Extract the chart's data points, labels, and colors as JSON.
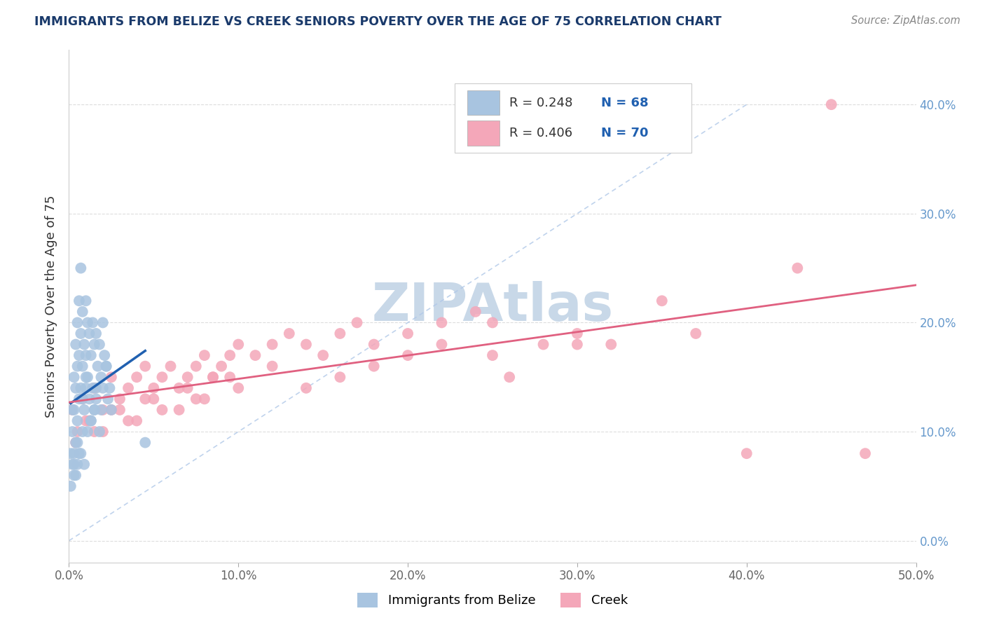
{
  "title": "IMMIGRANTS FROM BELIZE VS CREEK SENIORS POVERTY OVER THE AGE OF 75 CORRELATION CHART",
  "source_text": "Source: ZipAtlas.com",
  "ylabel": "Seniors Poverty Over the Age of 75",
  "xlim": [
    0.0,
    50.0
  ],
  "ylim": [
    -2.0,
    45.0
  ],
  "ytick_labels": [
    "0.0%",
    "10.0%",
    "20.0%",
    "30.0%",
    "40.0%"
  ],
  "ytick_values": [
    0,
    10,
    20,
    30,
    40
  ],
  "xtick_labels": [
    "0.0%",
    "10.0%",
    "20.0%",
    "30.0%",
    "40.0%",
    "50.0%"
  ],
  "xtick_values": [
    0,
    10,
    20,
    30,
    40,
    50
  ],
  "legend_blue_label": "Immigrants from Belize",
  "legend_pink_label": "Creek",
  "R_blue": 0.248,
  "N_blue": 68,
  "R_pink": 0.406,
  "N_pink": 70,
  "blue_color": "#a8c4e0",
  "pink_color": "#f4a7b9",
  "blue_line_color": "#2060b0",
  "pink_line_color": "#e06080",
  "ref_line_color": "#b0c8e8",
  "background_color": "#ffffff",
  "watermark_color": "#c8d8e8",
  "title_color": "#1a3a6b",
  "blue_x_data": [
    0.1,
    0.1,
    0.2,
    0.2,
    0.2,
    0.3,
    0.3,
    0.3,
    0.3,
    0.4,
    0.4,
    0.4,
    0.5,
    0.5,
    0.5,
    0.5,
    0.6,
    0.6,
    0.6,
    0.7,
    0.7,
    0.7,
    0.8,
    0.8,
    0.8,
    0.9,
    0.9,
    1.0,
    1.0,
    1.0,
    1.1,
    1.1,
    1.2,
    1.2,
    1.3,
    1.3,
    1.4,
    1.4,
    1.5,
    1.5,
    1.6,
    1.6,
    1.7,
    1.8,
    1.8,
    1.9,
    2.0,
    2.0,
    2.1,
    2.2,
    2.3,
    2.4,
    2.5,
    0.5,
    0.8,
    1.0,
    1.3,
    1.6,
    1.9,
    2.2,
    0.4,
    0.7,
    1.1,
    1.5,
    4.5,
    0.3,
    0.6,
    0.9
  ],
  "blue_y_data": [
    8,
    5,
    12,
    7,
    10,
    15,
    8,
    12,
    6,
    18,
    14,
    9,
    20,
    16,
    11,
    7,
    22,
    17,
    13,
    25,
    19,
    14,
    21,
    16,
    10,
    18,
    12,
    22,
    17,
    14,
    20,
    15,
    19,
    13,
    17,
    11,
    20,
    14,
    18,
    12,
    19,
    13,
    16,
    18,
    10,
    15,
    20,
    14,
    17,
    16,
    13,
    14,
    12,
    9,
    13,
    15,
    11,
    14,
    12,
    16,
    6,
    8,
    10,
    12,
    9,
    7,
    8,
    7
  ],
  "pink_x_data": [
    0.2,
    0.5,
    0.8,
    1.0,
    1.5,
    2.0,
    2.5,
    3.0,
    3.5,
    4.0,
    4.5,
    5.0,
    5.5,
    6.0,
    7.0,
    7.5,
    8.0,
    8.5,
    9.0,
    9.5,
    10.0,
    11.0,
    12.0,
    13.0,
    14.0,
    15.0,
    16.0,
    17.0,
    18.0,
    20.0,
    22.0,
    24.0,
    25.0,
    26.0,
    28.0,
    30.0,
    32.0,
    35.0,
    37.0,
    40.0,
    0.4,
    1.2,
    2.0,
    3.0,
    4.0,
    5.0,
    6.5,
    7.0,
    8.0,
    9.5,
    1.5,
    2.5,
    3.5,
    4.5,
    5.5,
    6.5,
    7.5,
    8.5,
    10.0,
    12.0,
    14.0,
    16.0,
    18.0,
    20.0,
    22.0,
    25.0,
    30.0,
    45.0,
    47.0,
    43.0
  ],
  "pink_y_data": [
    12,
    10,
    13,
    11,
    14,
    12,
    15,
    13,
    14,
    15,
    16,
    14,
    15,
    16,
    15,
    16,
    17,
    15,
    16,
    17,
    18,
    17,
    18,
    19,
    18,
    17,
    19,
    20,
    18,
    19,
    20,
    21,
    20,
    15,
    18,
    19,
    18,
    22,
    19,
    8,
    9,
    11,
    10,
    12,
    11,
    13,
    12,
    14,
    13,
    15,
    10,
    12,
    11,
    13,
    12,
    14,
    13,
    15,
    14,
    16,
    14,
    15,
    16,
    17,
    18,
    17,
    18,
    40,
    8,
    25
  ]
}
